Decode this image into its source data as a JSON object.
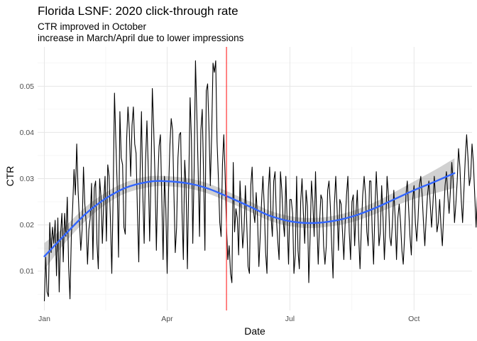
{
  "chart_data": {
    "type": "line",
    "title": "Florida LSNF: 2020 click-through rate",
    "subtitle_lines": [
      "CTR improved in October",
      "increase in March/April due to lower impressions"
    ],
    "xlabel": "Date",
    "ylabel": "CTR",
    "xlim": [
      "2019-12-27",
      "2020-11-13"
    ],
    "ylim": [
      0.0015,
      0.0585
    ],
    "x_ticks": [
      {
        "date": "2020-01-01",
        "label": "Jan"
      },
      {
        "date": "2020-04-01",
        "label": "Apr"
      },
      {
        "date": "2020-07-01",
        "label": "Jul"
      },
      {
        "date": "2020-10-01",
        "label": "Oct"
      }
    ],
    "y_ticks": [
      0.01,
      0.02,
      0.03,
      0.04,
      0.05
    ],
    "grid": true,
    "legend": "none",
    "series": [
      {
        "color": "#000000",
        "x_start": "2020-01-01",
        "step_days": 1,
        "values": [
          0.0035,
          0.013,
          0.0055,
          0.0045,
          0.0205,
          0.014,
          0.0195,
          0.016,
          0.021,
          0.009,
          0.0215,
          0.0055,
          0.018,
          0.0225,
          0.012,
          0.0225,
          0.0175,
          0.026,
          0.011,
          0.004,
          0.0175,
          0.024,
          0.032,
          0.0265,
          0.0375,
          0.0275,
          0.021,
          0.0145,
          0.019,
          0.0325,
          0.0245,
          0.0205,
          0.0115,
          0.019,
          0.0215,
          0.029,
          0.0125,
          0.028,
          0.0295,
          0.016,
          0.0105,
          0.03,
          0.026,
          0.016,
          0.025,
          0.0305,
          0.0165,
          0.033,
          0.0305,
          0.021,
          0.0095,
          0.0265,
          0.0485,
          0.038,
          0.0285,
          0.013,
          0.0445,
          0.0345,
          0.033,
          0.0195,
          0.018,
          0.0385,
          0.0455,
          0.0405,
          0.0305,
          0.0415,
          0.0455,
          0.0375,
          0.0355,
          0.023,
          0.012,
          0.0315,
          0.0445,
          0.0265,
          0.016,
          0.0335,
          0.0425,
          0.032,
          0.0165,
          0.03,
          0.0495,
          0.041,
          0.03,
          0.0145,
          0.029,
          0.037,
          0.0395,
          0.026,
          0.0125,
          0.0305,
          0.0235,
          0.0095,
          0.027,
          0.037,
          0.043,
          0.0405,
          0.027,
          0.014,
          0.0195,
          0.0345,
          0.0395,
          0.04,
          0.023,
          0.0125,
          0.034,
          0.0285,
          0.0105,
          0.029,
          0.0475,
          0.0385,
          0.016,
          0.032,
          0.0555,
          0.044,
          0.0315,
          0.0175,
          0.0405,
          0.045,
          0.031,
          0.0145,
          0.049,
          0.0505,
          0.041,
          0.0285,
          0.0395,
          0.055,
          0.053,
          0.0555,
          0.038,
          0.03,
          0.0205,
          0.0175,
          0.033,
          0.0395,
          0.0305,
          0.0195,
          0.0125,
          0.0155,
          0.0095,
          0.0075,
          0.0335,
          0.0185,
          0.0235,
          0.0215,
          0.0135,
          0.0295,
          0.0225,
          0.015,
          0.019,
          0.0285,
          0.0205,
          0.011,
          0.0095,
          0.0285,
          0.0325,
          0.023,
          0.0205,
          0.027,
          0.0215,
          0.011,
          0.0175,
          0.025,
          0.0305,
          0.024,
          0.014,
          0.0095,
          0.0275,
          0.0325,
          0.022,
          0.0175,
          0.0295,
          0.0315,
          0.0215,
          0.0165,
          0.0125,
          0.0315,
          0.0275,
          0.021,
          0.0175,
          0.0305,
          0.0205,
          0.0115,
          0.0255,
          0.0255,
          0.0225,
          0.0095,
          0.0135,
          0.0305,
          0.0145,
          0.0105,
          0.025,
          0.03,
          0.0225,
          0.016,
          0.0275,
          0.024,
          0.0075,
          0.0175,
          0.0295,
          0.025,
          0.0175,
          0.0315,
          0.0205,
          0.0115,
          0.0205,
          0.0265,
          0.0255,
          0.0155,
          0.0115,
          0.0155,
          0.0275,
          0.0295,
          0.024,
          0.0155,
          0.0085,
          0.0245,
          0.0305,
          0.0235,
          0.0145,
          0.0255,
          0.0245,
          0.0185,
          0.0125,
          0.0205,
          0.0265,
          0.0305,
          0.0185,
          0.0125,
          0.025,
          0.0265,
          0.0155,
          0.0225,
          0.0275,
          0.0175,
          0.0105,
          0.0195,
          0.0265,
          0.0305,
          0.0265,
          0.0185,
          0.0155,
          0.0295,
          0.0295,
          0.0185,
          0.0115,
          0.0235,
          0.0315,
          0.0245,
          0.0155,
          0.0185,
          0.0285,
          0.0215,
          0.0125,
          0.0195,
          0.0305,
          0.0265,
          0.0175,
          0.0155,
          0.0205,
          0.0275,
          0.0215,
          0.0125,
          0.0215,
          0.0245,
          0.0205,
          0.0145,
          0.0115,
          0.0175,
          0.0265,
          0.0295,
          0.0235,
          0.0175,
          0.0135,
          0.0255,
          0.0285,
          0.0205,
          0.0165,
          0.0215,
          0.0285,
          0.0305,
          0.0265,
          0.0205,
          0.0155,
          0.0215,
          0.0265,
          0.0295,
          0.0245,
          0.0195,
          0.0245,
          0.0305,
          0.0255,
          0.0185,
          0.0205,
          0.0255,
          0.0195,
          0.0155,
          0.0225,
          0.0285,
          0.0315,
          0.0265,
          0.0225,
          0.0275,
          0.0335,
          0.0295,
          0.0205,
          0.0245,
          0.0295,
          0.0365,
          0.0325,
          0.0255,
          0.0205,
          0.0275,
          0.0345,
          0.0395,
          0.0345,
          0.0285,
          0.0305,
          0.0375,
          0.0335,
          0.0265,
          0.0195,
          0.0265,
          0.0355,
          0.0365
        ]
      },
      {
        "type": "smooth",
        "color": "#3366ff",
        "ribbon_color": "#999999",
        "points": [
          {
            "x": "2020-01-01",
            "y": 0.0132,
            "lo": 0.0103,
            "hi": 0.0161
          },
          {
            "x": "2020-01-16",
            "y": 0.0178,
            "lo": 0.016,
            "hi": 0.0196
          },
          {
            "x": "2020-02-01",
            "y": 0.0225,
            "lo": 0.021,
            "hi": 0.024
          },
          {
            "x": "2020-02-16",
            "y": 0.0258,
            "lo": 0.0245,
            "hi": 0.0271
          },
          {
            "x": "2020-03-01",
            "y": 0.028,
            "lo": 0.0268,
            "hi": 0.0292
          },
          {
            "x": "2020-03-16",
            "y": 0.0292,
            "lo": 0.028,
            "hi": 0.0304
          },
          {
            "x": "2020-03-28",
            "y": 0.0295,
            "lo": 0.0284,
            "hi": 0.0306
          },
          {
            "x": "2020-04-16",
            "y": 0.029,
            "lo": 0.0279,
            "hi": 0.0301
          },
          {
            "x": "2020-05-01",
            "y": 0.0279,
            "lo": 0.0268,
            "hi": 0.029
          },
          {
            "x": "2020-05-16",
            "y": 0.0261,
            "lo": 0.025,
            "hi": 0.0272
          },
          {
            "x": "2020-06-01",
            "y": 0.024,
            "lo": 0.0229,
            "hi": 0.0251
          },
          {
            "x": "2020-06-16",
            "y": 0.022,
            "lo": 0.0209,
            "hi": 0.0231
          },
          {
            "x": "2020-07-01",
            "y": 0.0208,
            "lo": 0.0197,
            "hi": 0.0219
          },
          {
            "x": "2020-07-16",
            "y": 0.0204,
            "lo": 0.0193,
            "hi": 0.0215
          },
          {
            "x": "2020-08-01",
            "y": 0.0208,
            "lo": 0.0197,
            "hi": 0.0219
          },
          {
            "x": "2020-08-16",
            "y": 0.0218,
            "lo": 0.0206,
            "hi": 0.023
          },
          {
            "x": "2020-09-01",
            "y": 0.0235,
            "lo": 0.0222,
            "hi": 0.0248
          },
          {
            "x": "2020-09-16",
            "y": 0.0255,
            "lo": 0.024,
            "hi": 0.027
          },
          {
            "x": "2020-10-01",
            "y": 0.0275,
            "lo": 0.0256,
            "hi": 0.0294
          },
          {
            "x": "2020-10-16",
            "y": 0.0293,
            "lo": 0.0268,
            "hi": 0.0318
          },
          {
            "x": "2020-10-31",
            "y": 0.0312,
            "lo": 0.028,
            "hi": 0.0344
          }
        ]
      }
    ],
    "vline": {
      "x": "2020-05-15",
      "color": "#ff3333"
    }
  }
}
